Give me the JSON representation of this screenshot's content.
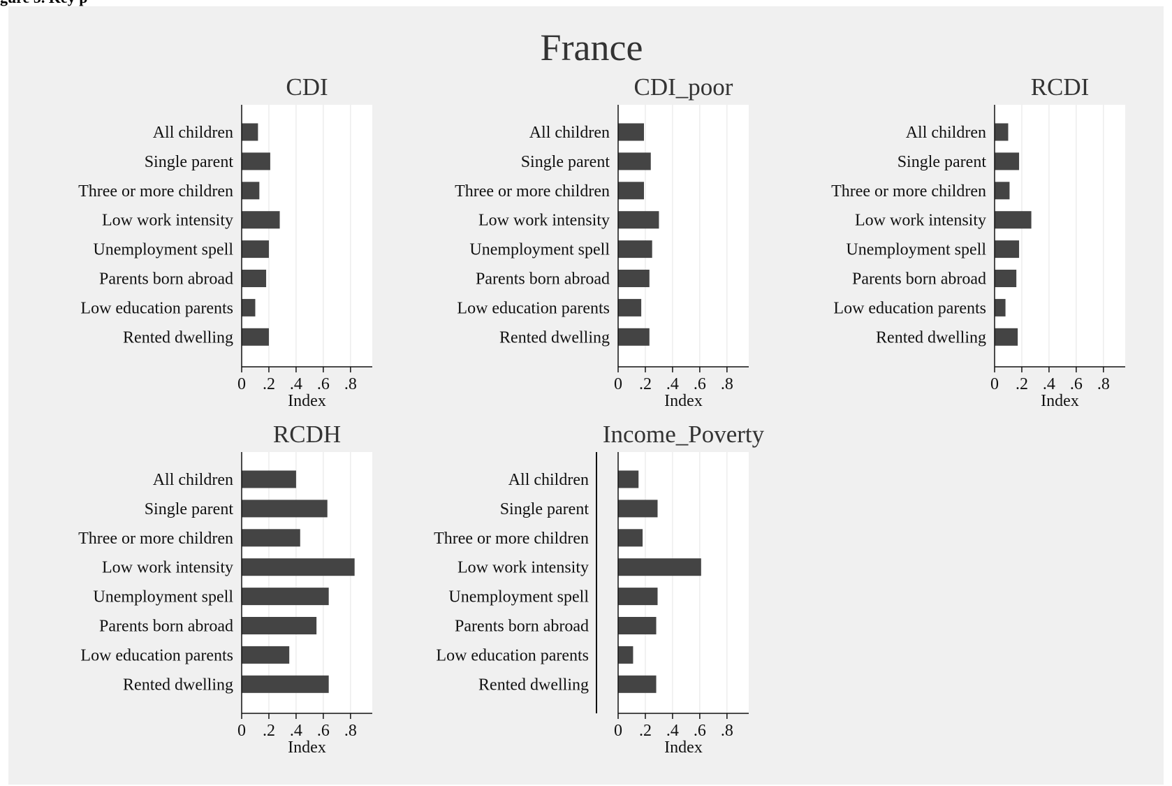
{
  "header": {
    "text": "gure 5. Key p"
  },
  "figure": {
    "title": "France"
  },
  "colors": {
    "bar": "#444444",
    "panel_bg": "#ffffff",
    "figure_bg": "#f0f0f0",
    "grid": "#e8e8e8",
    "axis": "#111111"
  },
  "chart_data": [
    {
      "type": "bar",
      "orientation": "horizontal",
      "title": "CDI",
      "xlabel": "Index",
      "categories": [
        "All children",
        "Single parent",
        "Three or more children",
        "Low work intensity",
        "Unemployment spell",
        "Parents born abroad",
        "Low education parents",
        "Rented dwelling"
      ],
      "values": [
        0.12,
        0.21,
        0.13,
        0.28,
        0.2,
        0.18,
        0.1,
        0.2
      ],
      "xlim": [
        0,
        0.96
      ],
      "xticks": [
        0,
        0.2,
        0.4,
        0.6,
        0.8
      ],
      "xtick_labels": [
        "0",
        ".2",
        ".4",
        ".6",
        ".8"
      ],
      "grid": true
    },
    {
      "type": "bar",
      "orientation": "horizontal",
      "title": "CDI_poor",
      "xlabel": "Index",
      "categories": [
        "All children",
        "Single parent",
        "Three or more children",
        "Low work intensity",
        "Unemployment spell",
        "Parents born abroad",
        "Low education parents",
        "Rented dwelling"
      ],
      "values": [
        0.19,
        0.24,
        0.19,
        0.3,
        0.25,
        0.23,
        0.17,
        0.23
      ],
      "xlim": [
        0,
        0.96
      ],
      "xticks": [
        0,
        0.2,
        0.4,
        0.6,
        0.8
      ],
      "xtick_labels": [
        "0",
        ".2",
        ".4",
        ".6",
        ".8"
      ],
      "grid": true
    },
    {
      "type": "bar",
      "orientation": "horizontal",
      "title": "RCDI",
      "xlabel": "Index",
      "categories": [
        "All children",
        "Single parent",
        "Three or more children",
        "Low work intensity",
        "Unemployment spell",
        "Parents born abroad",
        "Low education parents",
        "Rented dwelling"
      ],
      "values": [
        0.1,
        0.18,
        0.11,
        0.27,
        0.18,
        0.16,
        0.08,
        0.17
      ],
      "xlim": [
        0,
        0.96
      ],
      "xticks": [
        0,
        0.2,
        0.4,
        0.6,
        0.8
      ],
      "xtick_labels": [
        "0",
        ".2",
        ".4",
        ".6",
        ".8"
      ],
      "grid": true
    },
    {
      "type": "bar",
      "orientation": "horizontal",
      "title": "RCDH",
      "xlabel": "Index",
      "categories": [
        "All children",
        "Single parent",
        "Three or more children",
        "Low work intensity",
        "Unemployment spell",
        "Parents born abroad",
        "Low education parents",
        "Rented dwelling"
      ],
      "values": [
        0.4,
        0.63,
        0.43,
        0.83,
        0.64,
        0.55,
        0.35,
        0.64
      ],
      "xlim": [
        0,
        0.96
      ],
      "xticks": [
        0,
        0.2,
        0.4,
        0.6,
        0.8
      ],
      "xtick_labels": [
        "0",
        ".2",
        ".4",
        ".6",
        ".8"
      ],
      "grid": true
    },
    {
      "type": "bar",
      "orientation": "horizontal",
      "title": "Income_Poverty",
      "xlabel": "Index",
      "categories": [
        "All children",
        "Single parent",
        "Three or more children",
        "Low work intensity",
        "Unemployment spell",
        "Parents born abroad",
        "Low education parents",
        "Rented dwelling"
      ],
      "values": [
        0.15,
        0.29,
        0.18,
        0.61,
        0.29,
        0.28,
        0.11,
        0.28
      ],
      "xlim": [
        0,
        0.96
      ],
      "xticks": [
        0,
        0.2,
        0.4,
        0.6,
        0.8
      ],
      "xtick_labels": [
        "0",
        ".2",
        ".4",
        ".6",
        ".8"
      ],
      "grid": true
    }
  ]
}
